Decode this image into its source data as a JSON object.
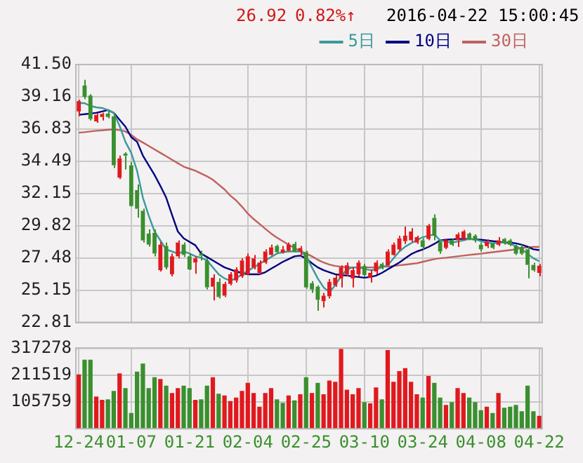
{
  "chart_data": [
    {
      "type": "candlestick",
      "annotations": [
        "26.92",
        "0.82%↑",
        "2016-04-22 15:00:45"
      ],
      "categories": [
        null,
        null,
        null,
        null,
        null,
        null,
        null,
        null,
        null,
        null,
        null,
        null,
        null,
        null,
        null,
        null,
        null,
        null,
        null,
        null,
        null,
        null,
        null,
        null,
        null,
        null,
        null,
        null,
        null,
        null,
        null,
        null,
        null,
        null,
        null,
        null,
        null,
        null,
        null,
        null,
        null,
        null,
        null,
        null,
        null,
        null,
        null,
        null,
        null,
        null,
        null,
        null,
        null,
        null,
        null,
        null,
        null,
        null,
        null,
        null,
        null,
        null,
        null,
        null,
        null,
        null,
        null,
        null,
        null,
        null,
        null,
        null,
        null,
        null,
        null,
        null,
        null,
        null,
        null,
        null
      ],
      "ohlc": [
        [
          38.1,
          38.95,
          37.75,
          38.85
        ],
        [
          39.98,
          40.4,
          39.0,
          39.16
        ],
        [
          39.25,
          39.35,
          37.45,
          37.55
        ],
        [
          37.38,
          37.95,
          37.28,
          37.85
        ],
        [
          37.7,
          38.0,
          37.45,
          37.92
        ],
        [
          37.95,
          38.1,
          37.6,
          37.7
        ],
        [
          37.75,
          37.95,
          34.0,
          34.2
        ],
        [
          33.3,
          34.9,
          33.2,
          34.7
        ],
        [
          35.05,
          35.15,
          33.9,
          34.9
        ],
        [
          34.2,
          34.45,
          31.2,
          31.25
        ],
        [
          32.4,
          32.8,
          30.4,
          31.05
        ],
        [
          30.9,
          31.05,
          28.6,
          28.75
        ],
        [
          29.25,
          29.55,
          28.3,
          28.45
        ],
        [
          29.3,
          29.55,
          27.6,
          27.8
        ],
        [
          26.6,
          28.65,
          26.5,
          28.45
        ],
        [
          28.35,
          28.6,
          26.65,
          26.8
        ],
        [
          26.3,
          27.8,
          26.15,
          27.6
        ],
        [
          27.6,
          28.75,
          27.45,
          28.6
        ],
        [
          28.45,
          28.6,
          27.55,
          27.7
        ],
        [
          27.6,
          27.8,
          26.6,
          26.65
        ],
        [
          27.15,
          27.6,
          26.33,
          27.45
        ],
        [
          27.8,
          28.0,
          27.3,
          27.65
        ],
        [
          27.3,
          27.45,
          25.2,
          25.35
        ],
        [
          25.4,
          26.3,
          24.4,
          26.05
        ],
        [
          25.75,
          26.0,
          24.55,
          24.65
        ],
        [
          24.75,
          25.75,
          24.65,
          25.6
        ],
        [
          25.6,
          26.45,
          25.5,
          26.3
        ],
        [
          25.85,
          26.8,
          25.7,
          26.65
        ],
        [
          26.15,
          27.45,
          26.05,
          27.3
        ],
        [
          26.3,
          27.8,
          26.25,
          27.6
        ],
        [
          26.8,
          27.7,
          26.65,
          27.45
        ],
        [
          26.4,
          27.3,
          26.25,
          27.15
        ],
        [
          27.15,
          28.1,
          27.05,
          27.95
        ],
        [
          27.7,
          28.45,
          27.65,
          28.25
        ],
        [
          28.35,
          28.45,
          27.8,
          27.9
        ],
        [
          27.9,
          28.35,
          27.8,
          28.1
        ],
        [
          28.0,
          28.6,
          27.95,
          28.45
        ],
        [
          28.5,
          28.65,
          27.9,
          27.95
        ],
        [
          27.95,
          28.35,
          27.6,
          28.2
        ],
        [
          27.9,
          28.0,
          25.25,
          25.35
        ],
        [
          25.65,
          25.8,
          24.95,
          25.2
        ],
        [
          25.4,
          25.5,
          23.65,
          24.45
        ],
        [
          24.35,
          24.95,
          23.9,
          24.75
        ],
        [
          24.7,
          25.95,
          24.55,
          25.75
        ],
        [
          25.5,
          26.25,
          25.4,
          26.05
        ],
        [
          26.0,
          26.95,
          25.35,
          26.8
        ],
        [
          26.3,
          27.15,
          26.15,
          26.95
        ],
        [
          26.0,
          26.8,
          25.35,
          26.6
        ],
        [
          26.3,
          27.3,
          26.15,
          27.15
        ],
        [
          26.9,
          27.05,
          26.15,
          26.25
        ],
        [
          26.05,
          26.6,
          25.7,
          26.4
        ],
        [
          26.5,
          27.3,
          26.3,
          27.15
        ],
        [
          27.05,
          27.15,
          26.65,
          26.8
        ],
        [
          26.95,
          28.1,
          26.9,
          27.95
        ],
        [
          27.7,
          28.6,
          27.65,
          28.45
        ],
        [
          28.1,
          29.1,
          28.0,
          28.9
        ],
        [
          28.7,
          29.75,
          28.5,
          29.1
        ],
        [
          28.76,
          29.64,
          28.65,
          29.4
        ],
        [
          28.6,
          29.1,
          28.5,
          28.99
        ],
        [
          28.76,
          28.9,
          28.1,
          28.28
        ],
        [
          28.86,
          29.95,
          28.76,
          29.83
        ],
        [
          30.39,
          30.65,
          28.76,
          29.09
        ],
        [
          28.67,
          28.76,
          27.79,
          27.95
        ],
        [
          28.21,
          28.86,
          28.11,
          28.76
        ],
        [
          28.76,
          28.86,
          28.34,
          28.44
        ],
        [
          28.76,
          29.32,
          28.28,
          29.19
        ],
        [
          28.86,
          29.51,
          28.76,
          29.41
        ],
        [
          29.25,
          29.32,
          28.76,
          28.86
        ],
        [
          29.09,
          29.19,
          28.6,
          28.76
        ],
        [
          28.44,
          28.6,
          27.95,
          28.11
        ],
        [
          28.34,
          28.83,
          28.21,
          28.67
        ],
        [
          28.54,
          28.6,
          28.11,
          28.21
        ],
        [
          28.44,
          28.99,
          28.34,
          28.76
        ],
        [
          28.86,
          28.93,
          28.44,
          28.54
        ],
        [
          28.76,
          28.86,
          28.34,
          28.44
        ],
        [
          28.34,
          28.44,
          27.69,
          27.79
        ],
        [
          28.28,
          28.44,
          27.69,
          27.79
        ],
        [
          28.11,
          28.28,
          26.0,
          26.98
        ],
        [
          26.98,
          27.14,
          26.49,
          26.59
        ],
        [
          26.4,
          27.05,
          26.16,
          26.92
        ]
      ],
      "colors": [
        "#e0191e",
        "#3a8f2e",
        "#3a8f2e",
        "#e0191e",
        "#e0191e",
        "#3a8f2e",
        "#3a8f2e",
        "#e0191e",
        "#3a8f2e",
        "#3a8f2e",
        "#3a8f2e",
        "#3a8f2e",
        "#3a8f2e",
        "#3a8f2e",
        "#e0191e",
        "#3a8f2e",
        "#e0191e",
        "#e0191e",
        "#3a8f2e",
        "#3a8f2e",
        "#e0191e",
        "#3a8f2e",
        "#3a8f2e",
        "#e0191e",
        "#3a8f2e",
        "#e0191e",
        "#e0191e",
        "#e0191e",
        "#e0191e",
        "#e0191e",
        "#e0191e",
        "#e0191e",
        "#e0191e",
        "#e0191e",
        "#3a8f2e",
        "#e0191e",
        "#e0191e",
        "#3a8f2e",
        "#e0191e",
        "#3a8f2e",
        "#3a8f2e",
        "#3a8f2e",
        "#e0191e",
        "#e0191e",
        "#e0191e",
        "#e0191e",
        "#e0191e",
        "#e0191e",
        "#e0191e",
        "#3a8f2e",
        "#e0191e",
        "#e0191e",
        "#3a8f2e",
        "#e0191e",
        "#e0191e",
        "#e0191e",
        "#e0191e",
        "#e0191e",
        "#e0191e",
        "#3a8f2e",
        "#e0191e",
        "#3a8f2e",
        "#3a8f2e",
        "#e0191e",
        "#3a8f2e",
        "#e0191e",
        "#e0191e",
        "#3a8f2e",
        "#3a8f2e",
        "#3a8f2e",
        "#e0191e",
        "#3a8f2e",
        "#e0191e",
        "#3a8f2e",
        "#3a8f2e",
        "#3a8f2e",
        "#3a8f2e",
        "#3a8f2e",
        "#3a8f2e",
        "#e0191e"
      ],
      "series": [
        {
          "type": "line",
          "name": "5日",
          "color": "#3a9a9a",
          "values": [
            38.7,
            38.7,
            38.5,
            38.4,
            38.35,
            38.2,
            38.0,
            37.05,
            35.9,
            35.1,
            33.8,
            31.85,
            30.55,
            29.4,
            28.75,
            28.1,
            27.95,
            27.8,
            27.95,
            27.8,
            27.6,
            27.5,
            27.3,
            26.8,
            26.3,
            26.0,
            25.85,
            26.0,
            26.3,
            26.55,
            26.8,
            27.05,
            27.3,
            27.55,
            27.8,
            27.9,
            27.95,
            27.95,
            27.95,
            27.6,
            26.8,
            26.0,
            25.35,
            25.0,
            25.5,
            26.15,
            26.65,
            26.8,
            26.8,
            26.7,
            26.6,
            26.65,
            26.8,
            26.95,
            27.45,
            27.95,
            28.3,
            28.55,
            28.76,
            28.99,
            29.09,
            29.19,
            28.76,
            28.67,
            28.6,
            28.67,
            28.76,
            28.86,
            28.83,
            28.7,
            28.6,
            28.54,
            28.6,
            28.6,
            28.5,
            28.34,
            28.11,
            27.79,
            27.46,
            27.24
          ]
        },
        {
          "type": "line",
          "name": "10日",
          "color": "#000080",
          "values": [
            37.86,
            37.9,
            37.95,
            38.0,
            38.1,
            38.2,
            38.0,
            37.5,
            37.0,
            36.24,
            35.9,
            34.9,
            34.2,
            33.5,
            32.7,
            31.85,
            30.6,
            29.4,
            28.9,
            28.65,
            28.4,
            27.8,
            27.55,
            27.3,
            27.05,
            26.8,
            26.65,
            26.5,
            26.4,
            26.3,
            26.3,
            26.3,
            26.45,
            26.7,
            26.95,
            27.2,
            27.4,
            27.6,
            27.65,
            27.45,
            27.1,
            26.8,
            26.6,
            26.45,
            26.3,
            26.25,
            26.2,
            26.15,
            26.1,
            26.05,
            26.1,
            26.2,
            26.4,
            26.65,
            26.9,
            27.15,
            27.45,
            27.75,
            27.95,
            28.1,
            28.28,
            28.5,
            28.76,
            28.8,
            28.83,
            28.86,
            28.86,
            28.86,
            28.83,
            28.8,
            28.76,
            28.7,
            28.67,
            28.6,
            28.6,
            28.54,
            28.44,
            28.3,
            28.11,
            28.05
          ]
        },
        {
          "type": "line",
          "name": "30日",
          "color": "#c06060",
          "values": [
            36.56,
            36.6,
            36.65,
            36.7,
            36.73,
            36.77,
            36.8,
            36.75,
            36.65,
            36.4,
            36.08,
            35.85,
            35.6,
            35.35,
            35.1,
            34.85,
            34.6,
            34.35,
            34.1,
            33.95,
            33.8,
            33.6,
            33.4,
            33.15,
            32.8,
            32.45,
            32.0,
            31.65,
            31.2,
            30.7,
            30.3,
            29.95,
            29.6,
            29.25,
            28.95,
            28.7,
            28.45,
            28.2,
            28.0,
            27.8,
            27.6,
            27.35,
            27.15,
            27.0,
            26.9,
            26.85,
            26.8,
            26.8,
            26.8,
            26.8,
            26.8,
            26.8,
            26.85,
            26.85,
            26.9,
            26.95,
            27.0,
            27.05,
            27.1,
            27.2,
            27.3,
            27.4,
            27.46,
            27.5,
            27.55,
            27.6,
            27.65,
            27.7,
            27.75,
            27.79,
            27.85,
            27.9,
            27.95,
            28.0,
            28.05,
            28.11,
            28.2,
            28.25,
            28.28,
            28.28
          ]
        }
      ],
      "ylim": [
        22.81,
        41.5
      ],
      "yticks": [
        22.81,
        25.15,
        27.48,
        29.82,
        32.15,
        34.49,
        36.83,
        39.16,
        {
          "value": 41.5,
          "label": "41.50"
        }
      ],
      "grid": true,
      "legend": "top right",
      "marker": "none",
      "tick_labels": "y"
    },
    {
      "type": "bar",
      "categories": [
        "12-24",
        null,
        null,
        null,
        null,
        null,
        null,
        null,
        null,
        "01-07",
        null,
        null,
        null,
        null,
        null,
        null,
        null,
        null,
        null,
        "01-21",
        null,
        null,
        null,
        null,
        null,
        null,
        null,
        null,
        null,
        "02-04",
        null,
        null,
        null,
        null,
        null,
        null,
        null,
        null,
        null,
        "02-25",
        null,
        null,
        null,
        null,
        null,
        null,
        null,
        null,
        null,
        "03-10",
        null,
        null,
        null,
        null,
        null,
        null,
        null,
        null,
        null,
        "03-24",
        null,
        null,
        null,
        null,
        null,
        null,
        null,
        null,
        null,
        "04-08",
        null,
        null,
        null,
        null,
        null,
        null,
        null,
        null,
        null,
        "04-22"
      ],
      "values": [
        214000,
        272000,
        272000,
        127000,
        114000,
        116000,
        149000,
        218000,
        160000,
        62000,
        225000,
        257000,
        160000,
        203000,
        196000,
        170000,
        141000,
        160000,
        170000,
        160000,
        114000,
        116000,
        170000,
        203000,
        138000,
        131000,
        109000,
        123000,
        149000,
        181000,
        141000,
        87000,
        141000,
        160000,
        116000,
        102000,
        131000,
        112000,
        136000,
        203000,
        141000,
        181000,
        136000,
        190000,
        185000,
        317000,
        154000,
        136000,
        160000,
        105000,
        100000,
        163000,
        116000,
        310000,
        185000,
        227000,
        239000,
        185000,
        136000,
        123000,
        208000,
        181000,
        123000,
        94000,
        105000,
        160000,
        141000,
        123000,
        105000,
        73000,
        87000,
        62000,
        141000,
        83000,
        87000,
        94000,
        69000,
        170000,
        69000,
        51000
      ],
      "colors": [
        "#e0191e",
        "#3a8f2e",
        "#3a8f2e",
        "#e0191e",
        "#e0191e",
        "#3a8f2e",
        "#3a8f2e",
        "#e0191e",
        "#3a8f2e",
        "#3a8f2e",
        "#3a8f2e",
        "#3a8f2e",
        "#3a8f2e",
        "#3a8f2e",
        "#e0191e",
        "#3a8f2e",
        "#e0191e",
        "#e0191e",
        "#3a8f2e",
        "#3a8f2e",
        "#e0191e",
        "#3a8f2e",
        "#3a8f2e",
        "#e0191e",
        "#3a8f2e",
        "#e0191e",
        "#e0191e",
        "#e0191e",
        "#e0191e",
        "#e0191e",
        "#e0191e",
        "#e0191e",
        "#e0191e",
        "#e0191e",
        "#3a8f2e",
        "#3a8f2e",
        "#e0191e",
        "#3a8f2e",
        "#e0191e",
        "#3a8f2e",
        "#e0191e",
        "#3a8f2e",
        "#e0191e",
        "#e0191e",
        "#e0191e",
        "#e0191e",
        "#e0191e",
        "#e0191e",
        "#e0191e",
        "#3a8f2e",
        "#e0191e",
        "#e0191e",
        "#3a8f2e",
        "#e0191e",
        "#e0191e",
        "#e0191e",
        "#e0191e",
        "#e0191e",
        "#e0191e",
        "#3a8f2e",
        "#e0191e",
        "#3a8f2e",
        "#3a8f2e",
        "#e0191e",
        "#3a8f2e",
        "#e0191e",
        "#e0191e",
        "#3a8f2e",
        "#3a8f2e",
        "#3a8f2e",
        "#e0191e",
        "#3a8f2e",
        "#e0191e",
        "#3a8f2e",
        "#3a8f2e",
        "#3a8f2e",
        "#3a8f2e",
        "#3a8f2e",
        "#3a8f2e",
        "#e0191e"
      ],
      "ylim": [
        0,
        317278
      ],
      "yticks": [
        105759,
        211519,
        317278
      ],
      "grid": true
    }
  ]
}
